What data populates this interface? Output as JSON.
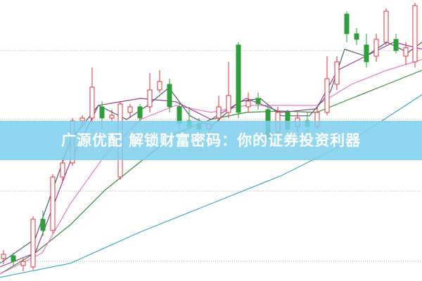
{
  "chart_data": {
    "type": "candlestick",
    "xlim": [
      0,
      60
    ],
    "ylim": [
      0,
      100
    ],
    "yticks": [
      7,
      32,
      57.5,
      82
    ],
    "grid": true,
    "up_color": "#e0303a",
    "down_color": "#2e9e3a",
    "x": [
      0.5,
      1.9,
      3.3,
      4.7,
      6.1,
      7.5,
      8.9,
      10.3,
      11.7,
      13.1,
      14.5,
      15.9,
      17.1,
      18.5,
      19.9,
      21.3,
      22.7,
      24.1,
      25.5,
      26.9,
      28.3,
      29.7,
      31.1,
      32.5,
      33.9,
      35.3,
      36.7,
      38.1,
      39.5,
      40.9,
      42.3,
      43.7,
      45.1,
      46.5,
      47.9,
      49.3,
      50.7,
      52.1,
      53.5,
      54.9,
      56.3,
      57.7,
      59.0
    ],
    "open": [
      8,
      9,
      5.5,
      5,
      22,
      18,
      37,
      42,
      57,
      58,
      62,
      58,
      37,
      60,
      62,
      62,
      68,
      70,
      62,
      57,
      56,
      54,
      58,
      60,
      84,
      62,
      65,
      61,
      53,
      60,
      55,
      57,
      55,
      60,
      70,
      95,
      88,
      84,
      80,
      85,
      86,
      80,
      78
    ],
    "high": [
      11,
      10,
      8,
      23,
      25,
      38,
      44,
      58,
      59,
      76,
      64,
      61,
      64,
      63,
      63,
      74,
      75,
      72,
      63,
      62,
      58,
      57,
      66,
      78,
      85,
      67,
      67,
      63,
      62,
      61,
      60,
      60,
      62,
      80,
      80,
      96,
      90,
      88,
      88,
      97,
      88,
      85,
      99
    ],
    "low": [
      6,
      5.5,
      3.5,
      4,
      16,
      17,
      35,
      41,
      55,
      56,
      54,
      57,
      36,
      58,
      57,
      60,
      67,
      60,
      54,
      54,
      52,
      52,
      56,
      58,
      58,
      60,
      61,
      50,
      51,
      52,
      53,
      52,
      54,
      59,
      68,
      85,
      84,
      76,
      78,
      84,
      81,
      77,
      76
    ],
    "close": [
      9.5,
      7,
      7,
      22,
      18,
      37,
      42,
      57,
      58,
      69,
      58,
      59,
      63,
      62,
      58,
      68,
      71,
      62,
      56,
      55,
      54,
      56,
      62,
      66,
      60,
      64,
      63,
      51,
      60,
      54,
      58,
      55,
      60,
      72,
      78,
      88,
      86,
      78,
      86,
      96,
      82,
      83,
      98
    ],
    "lines": [
      {
        "color": "#3aa8c8",
        "x": [
          0,
          10,
          20,
          30,
          40,
          50,
          60
        ],
        "values": [
          1.3,
          6.3,
          17.5,
          27.5,
          37.5,
          50,
          66.3
        ]
      },
      {
        "color": "#3c8c3c",
        "x": [
          0,
          5,
          10,
          15,
          20,
          25,
          30,
          35,
          40,
          45,
          50,
          55,
          60
        ],
        "values": [
          2.5,
          10,
          20,
          32.5,
          42.5,
          52.5,
          57.5,
          60,
          60.5,
          60,
          65,
          70,
          75
        ]
      },
      {
        "color": "#e878c8",
        "x": [
          0,
          6,
          10,
          15,
          20,
          25,
          30,
          35,
          40,
          45,
          50,
          55,
          60
        ],
        "values": [
          2.5,
          10,
          27.5,
          45,
          57.5,
          62.5,
          60,
          62.5,
          62.5,
          62.5,
          70,
          75,
          78.8
        ]
      },
      {
        "color": "#9a3c9a",
        "x": [
          0,
          5,
          10,
          14,
          20,
          25,
          30,
          35,
          40,
          45,
          48,
          52,
          56,
          60
        ],
        "values": [
          5,
          10,
          42.5,
          62.5,
          65,
          63.8,
          57.5,
          65,
          60,
          61.3,
          75,
          80,
          85,
          82.5
        ]
      },
      {
        "color": "#4a6070",
        "x": [
          0,
          5,
          10,
          14,
          18,
          21,
          24,
          27,
          30,
          34,
          37,
          40,
          44,
          47,
          49,
          52,
          55,
          58,
          60
        ],
        "values": [
          6.3,
          15,
          50,
          62.5,
          57.5,
          62.5,
          68.8,
          58.8,
          55,
          63.8,
          65,
          58.8,
          58.8,
          67.5,
          82.5,
          80,
          85,
          81.3,
          85
        ]
      }
    ]
  },
  "banner": {
    "text": "广源优配 解锁财富密码：你的证券投资利器"
  }
}
